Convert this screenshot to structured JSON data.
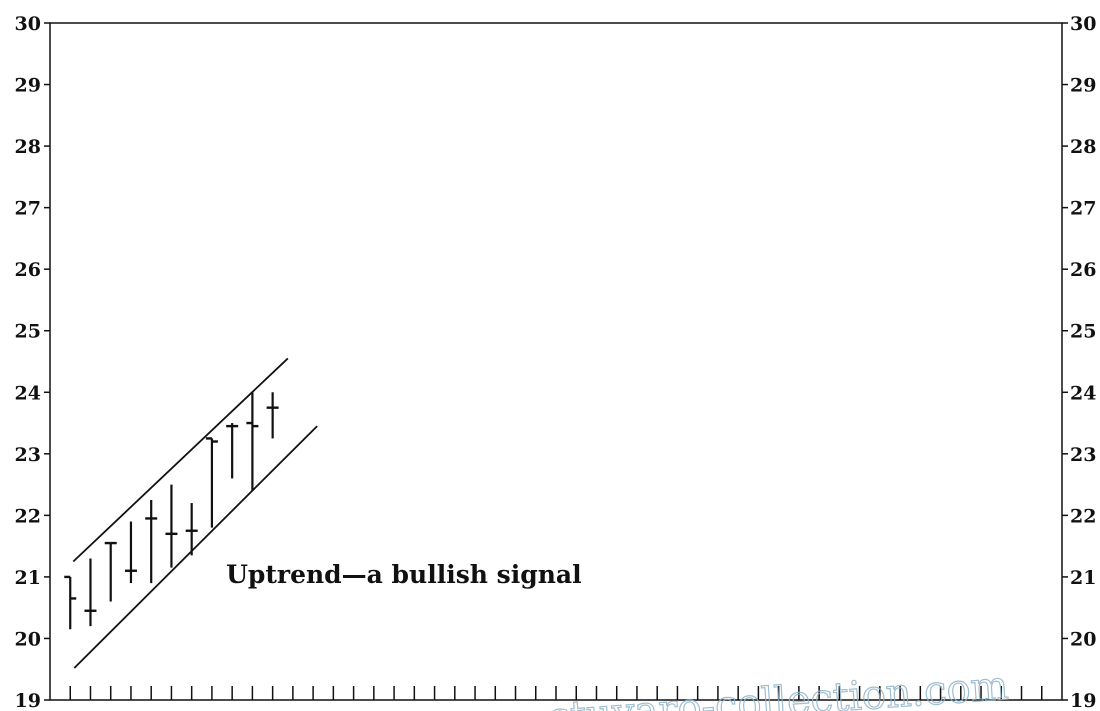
{
  "chart_data": {
    "type": "ohlc",
    "title": "",
    "xlabel": "",
    "ylabel": "",
    "ylim": [
      19,
      30
    ],
    "y_ticks": [
      19,
      20,
      21,
      22,
      23,
      24,
      25,
      26,
      27,
      28,
      29,
      30
    ],
    "y_tick_labels": [
      "19",
      "20",
      "21",
      "22",
      "23",
      "24",
      "25",
      "26",
      "27",
      "28",
      "29",
      "30"
    ],
    "y_tick_labels_right": [
      "19",
      "20",
      "21",
      "22",
      "23",
      "24",
      "25",
      "26",
      "27",
      "28",
      "29",
      "30"
    ],
    "x_range": [
      0,
      50
    ],
    "x_tick_count": 50,
    "grid": false,
    "bars": [
      {
        "x": 1,
        "high": 21.0,
        "low": 20.15,
        "open": 21.0,
        "close": 20.65
      },
      {
        "x": 2,
        "high": 21.3,
        "low": 20.2,
        "open": 20.45,
        "close": 20.45
      },
      {
        "x": 3,
        "high": 21.55,
        "low": 20.6,
        "open": 21.55,
        "close": 21.55
      },
      {
        "x": 4,
        "high": 21.9,
        "low": 20.9,
        "open": 21.1,
        "close": 21.1
      },
      {
        "x": 5,
        "high": 22.25,
        "low": 20.9,
        "open": 21.95,
        "close": 21.95
      },
      {
        "x": 6,
        "high": 22.5,
        "low": 21.15,
        "open": 21.7,
        "close": 21.7
      },
      {
        "x": 7,
        "high": 22.2,
        "low": 21.35,
        "open": 21.75,
        "close": 21.75
      },
      {
        "x": 8,
        "high": 23.25,
        "low": 21.8,
        "open": 23.25,
        "close": 23.2
      },
      {
        "x": 9,
        "high": 23.5,
        "low": 22.6,
        "open": 23.45,
        "close": 23.45
      },
      {
        "x": 10,
        "high": 24.0,
        "low": 22.4,
        "open": 23.5,
        "close": 23.45
      },
      {
        "x": 11,
        "high": 24.0,
        "low": 23.25,
        "open": 23.75,
        "close": 23.75
      }
    ],
    "trendlines": [
      {
        "name": "upper channel",
        "x": [
          1.15,
          11.75
        ],
        "y": [
          21.25,
          24.55
        ]
      },
      {
        "name": "lower channel",
        "x": [
          1.2,
          13.2
        ],
        "y": [
          19.52,
          23.45
        ]
      }
    ],
    "annotations": [
      {
        "text": "Uptrend—a bullish signal",
        "x": 8.7,
        "y": 20.9
      }
    ],
    "watermark": "stuvaro-collection.com"
  }
}
